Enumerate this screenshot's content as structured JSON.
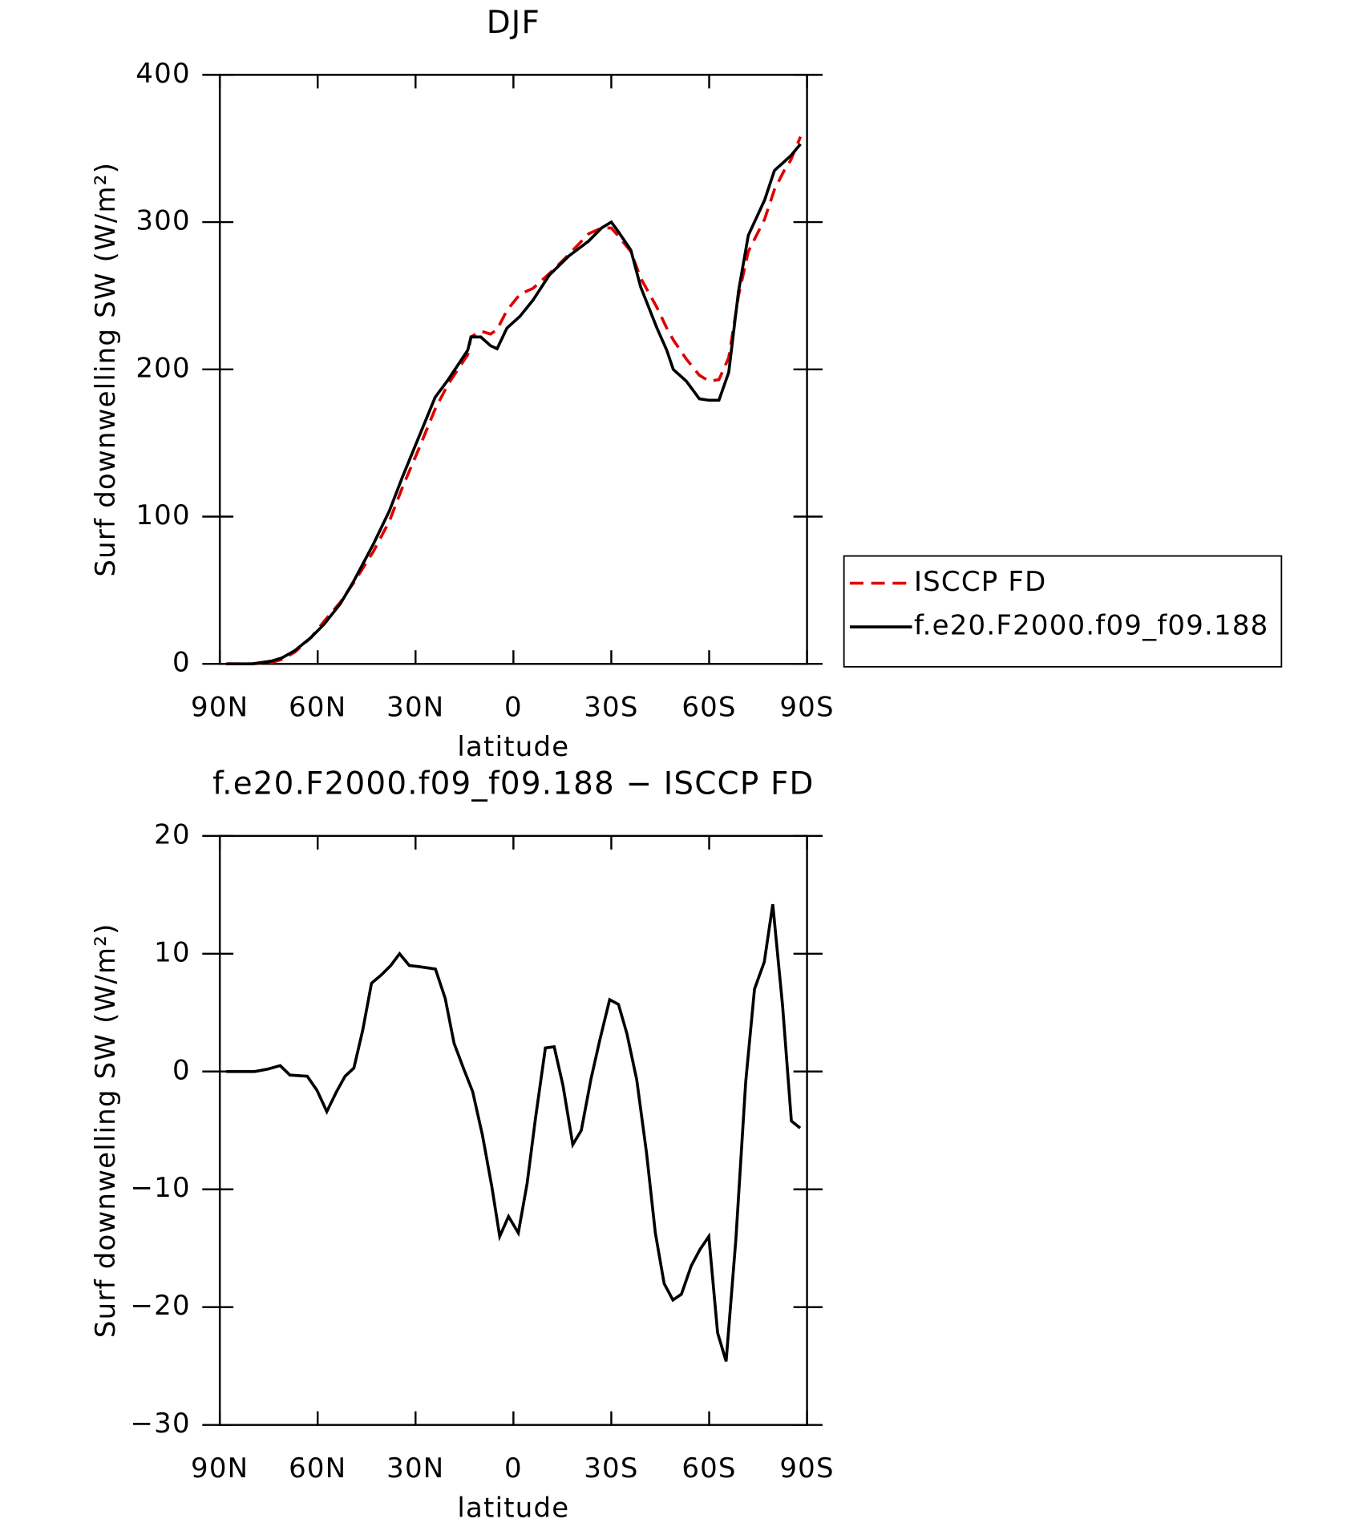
{
  "chart_data": [
    {
      "type": "line",
      "title": "DJF",
      "xlabel": "latitude",
      "ylabel": "Surf downwelling SW (W/m²)",
      "x": [
        88,
        80,
        74,
        71,
        67,
        62,
        58,
        53,
        49,
        43,
        38,
        34,
        29,
        24,
        20,
        14,
        13,
        10,
        7,
        5,
        2,
        -2,
        -6,
        -11,
        -17,
        -23,
        -27,
        -30,
        -32,
        -36,
        -39,
        -44,
        -47,
        -49,
        -53,
        -57,
        -60,
        -63,
        -66,
        -69,
        -72,
        -77,
        -80,
        -83,
        -85,
        -88
      ],
      "series": [
        {
          "name": "ISCCP FD",
          "color": "#e00000",
          "dashed": true,
          "values": [
            0,
            0,
            1,
            3,
            8,
            18,
            29,
            42,
            55,
            76,
            97,
            120,
            146,
            173,
            190,
            210,
            222,
            226,
            224,
            227,
            240,
            251,
            255,
            265,
            278,
            292,
            296,
            296,
            291,
            280,
            262,
            242,
            228,
            220,
            207,
            196,
            192,
            193,
            208,
            250,
            280,
            302,
            322,
            335,
            342,
            358
          ]
        },
        {
          "name": "f.e20.F2000.f09_f09.188",
          "color": "#000000",
          "dashed": false,
          "values": [
            0,
            0,
            2,
            4,
            9,
            18,
            27,
            41,
            56,
            81,
            104,
            127,
            154,
            181,
            193,
            213,
            222,
            222,
            216,
            214,
            228,
            236,
            247,
            264,
            277,
            287,
            296,
            300,
            294,
            281,
            256,
            228,
            213,
            200,
            192,
            180,
            179,
            179,
            198,
            253,
            291,
            315,
            335,
            341,
            345,
            353
          ]
        }
      ],
      "xlim": [
        90,
        -90
      ],
      "xticks": [
        {
          "value": 90,
          "label": "90N"
        },
        {
          "value": 60,
          "label": "60N"
        },
        {
          "value": 30,
          "label": "30N"
        },
        0,
        {
          "value": -30,
          "label": "30S"
        },
        {
          "value": -60,
          "label": "60S"
        },
        {
          "value": -90,
          "label": "90S"
        }
      ],
      "ylim": [
        0,
        400
      ],
      "yticks": [
        0,
        100,
        200,
        300,
        400
      ],
      "legend": "right"
    },
    {
      "type": "line",
      "title": "f.e20.F2000.f09_f09.188 − ISCCP FD",
      "xlabel": "latitude",
      "ylabel": "Surf downwelling SW (W/m²)",
      "x": [
        88,
        79.3,
        75.4,
        71.5,
        68.5,
        63.2,
        60.2,
        57.2,
        54.2,
        51.6,
        48.9,
        46.2,
        43.5,
        40.5,
        37.6,
        34.9,
        31.9,
        28.9,
        23.9,
        20.9,
        18.2,
        15.2,
        12.5,
        9.5,
        6.6,
        4.2,
        1.5,
        -1.5,
        -4.2,
        -6.8,
        -9.8,
        -12.5,
        -15.2,
        -18.2,
        -20.8,
        -23.8,
        -26.5,
        -29.5,
        -32.2,
        -34.8,
        -37.8,
        -40.8,
        -43.5,
        -46.2,
        -48.9,
        -51.5,
        -54.5,
        -57.2,
        -59.9,
        -62.6,
        -65.2,
        -68.2,
        -71.2,
        -73.9,
        -76.9,
        -79.5,
        -82.5,
        -85.2,
        -87.9
      ],
      "color": "#000000",
      "values": [
        0,
        0,
        0.2,
        0.5,
        -0.3,
        -0.4,
        -1.6,
        -3.4,
        -1.7,
        -0.4,
        0.3,
        3.5,
        7.5,
        8.2,
        9.0,
        10.0,
        9.0,
        8.9,
        8.7,
        6.2,
        2.4,
        0.2,
        -1.7,
        -5.4,
        -9.8,
        -14.0,
        -12.3,
        -13.7,
        -9.5,
        -3.9,
        2.0,
        2.1,
        -1.2,
        -6.2,
        -5.0,
        -0.6,
        2.7,
        6.1,
        5.7,
        3.2,
        -0.7,
        -6.9,
        -13.7,
        -18.0,
        -19.4,
        -18.9,
        -16.5,
        -15.1,
        -14.0,
        -22.2,
        -24.6,
        -14.2,
        -0.9,
        7.0,
        9.3,
        14.2,
        5.6,
        -4.2,
        -4.8
      ],
      "xlim": [
        90,
        -90
      ],
      "xticks": [
        {
          "value": 90,
          "label": "90N"
        },
        {
          "value": 60,
          "label": "60N"
        },
        {
          "value": 30,
          "label": "30N"
        },
        0,
        {
          "value": -30,
          "label": "30S"
        },
        {
          "value": -60,
          "label": "60S"
        },
        {
          "value": -90,
          "label": "90S"
        }
      ],
      "ylim": [
        -30,
        20
      ],
      "yticks": [
        {
          "value": -30,
          "label": "−30"
        },
        {
          "value": -20,
          "label": "−20"
        },
        {
          "value": -10,
          "label": "−10"
        },
        0,
        10,
        20
      ]
    }
  ]
}
